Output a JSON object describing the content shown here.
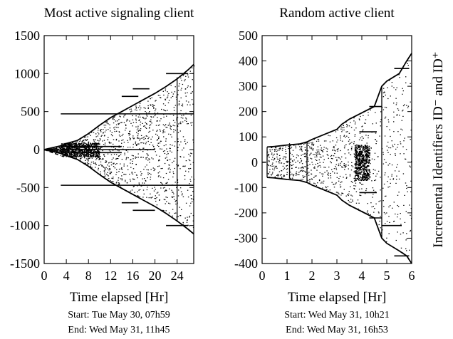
{
  "chart_data": [
    {
      "type": "scatter",
      "title": "Most active signaling client",
      "xlabel": "Time elapsed [Hr]",
      "ylabel": "",
      "xlim": [
        0,
        27
      ],
      "ylim": [
        -1500,
        1500
      ],
      "xticks": [
        0,
        4,
        8,
        12,
        16,
        20,
        24
      ],
      "yticks": [
        -1500,
        -1000,
        -500,
        0,
        500,
        1000,
        1500
      ],
      "grid": false,
      "start_text": "Start: Tue May 30, 07h59",
      "end_text": "End: Wed May 31, 11h45",
      "envelope": {
        "x": [
          0,
          3,
          4,
          6,
          8,
          10,
          12,
          14,
          16,
          18,
          20,
          22,
          24,
          26,
          27
        ],
        "y_upper": [
          0,
          50,
          80,
          120,
          210,
          320,
          420,
          500,
          580,
          660,
          740,
          830,
          930,
          1050,
          1120
        ],
        "y_lower": [
          0,
          -50,
          -80,
          -130,
          -220,
          -330,
          -430,
          -510,
          -590,
          -670,
          -750,
          -840,
          -940,
          -1050,
          -1110
        ]
      },
      "dense_band": {
        "x": [
          3,
          10
        ],
        "y": [
          -90,
          90
        ]
      },
      "horizontal_segments": [
        {
          "x": [
            3,
            27
          ],
          "y": 470
        },
        {
          "x": [
            3,
            27
          ],
          "y": -470
        },
        {
          "x": [
            3,
            14
          ],
          "y": 40
        },
        {
          "x": [
            3,
            14
          ],
          "y": -40
        },
        {
          "x": [
            3,
            20
          ],
          "y": 0
        },
        {
          "x": [
            14,
            17
          ],
          "y": 700
        },
        {
          "x": [
            16,
            19
          ],
          "y": 800
        },
        {
          "x": [
            22,
            26
          ],
          "y": 1000
        },
        {
          "x": [
            14,
            17
          ],
          "y": -700
        },
        {
          "x": [
            16,
            20
          ],
          "y": -800
        },
        {
          "x": [
            22,
            26
          ],
          "y": -1000
        }
      ],
      "vertical_segments": [
        {
          "x": 3,
          "y": [
            -60,
            60
          ]
        },
        {
          "x": 8,
          "y": [
            -100,
            100
          ]
        },
        {
          "x": 24,
          "y": [
            -950,
            950
          ]
        }
      ],
      "dashed_lead": {
        "x": [
          0,
          3
        ],
        "y": [
          0,
          -80
        ]
      }
    },
    {
      "type": "scatter",
      "title": "Random active client",
      "xlabel": "Time elapsed [Hr]",
      "ylabel": "Incremental Identifiers ID⁻ and ID⁺",
      "xlim": [
        0,
        6
      ],
      "ylim": [
        -400,
        500
      ],
      "xticks": [
        0,
        1,
        2,
        3,
        4,
        5,
        6
      ],
      "yticks": [
        -400,
        -300,
        -200,
        -100,
        0,
        100,
        200,
        300,
        400,
        500
      ],
      "grid": false,
      "start_text": "Start: Wed May 31, 10h21",
      "end_text": "End: Wed May 31, 16h53",
      "envelope": {
        "x": [
          0.2,
          0.5,
          1.0,
          1.5,
          1.8,
          2.0,
          2.5,
          3.0,
          3.2,
          3.5,
          4.0,
          4.5,
          4.8,
          5.0,
          5.5,
          5.8,
          6.0
        ],
        "y_upper": [
          60,
          62,
          68,
          72,
          80,
          90,
          110,
          130,
          150,
          170,
          195,
          220,
          300,
          320,
          350,
          400,
          430
        ],
        "y_lower": [
          -60,
          -62,
          -68,
          -72,
          -80,
          -90,
          -110,
          -130,
          -150,
          -170,
          -195,
          -220,
          -300,
          -320,
          -350,
          -370,
          -400
        ]
      },
      "dense_band": {
        "x": [
          3.7,
          4.3
        ],
        "y": [
          -70,
          70
        ]
      },
      "horizontal_segments": [
        {
          "x": [
            4.3,
            4.8
          ],
          "y": 220
        },
        {
          "x": [
            3.9,
            4.6
          ],
          "y": 120
        },
        {
          "x": [
            3.9,
            4.6
          ],
          "y": -120
        },
        {
          "x": [
            4.3,
            4.8
          ],
          "y": -220
        },
        {
          "x": [
            5.3,
            5.9
          ],
          "y": 370
        },
        {
          "x": [
            5.3,
            5.9
          ],
          "y": -370
        },
        {
          "x": [
            4.8,
            5.6
          ],
          "y": -250
        }
      ],
      "vertical_segments": [
        {
          "x": 0.2,
          "y": [
            -60,
            60
          ]
        },
        {
          "x": 1.1,
          "y": [
            -65,
            75
          ]
        },
        {
          "x": 1.8,
          "y": [
            -80,
            80
          ]
        },
        {
          "x": 4.8,
          "y": [
            -300,
            300
          ]
        }
      ],
      "dashed_lead": {
        "x": [
          0,
          0.2
        ],
        "y": [
          0,
          0
        ]
      }
    }
  ]
}
